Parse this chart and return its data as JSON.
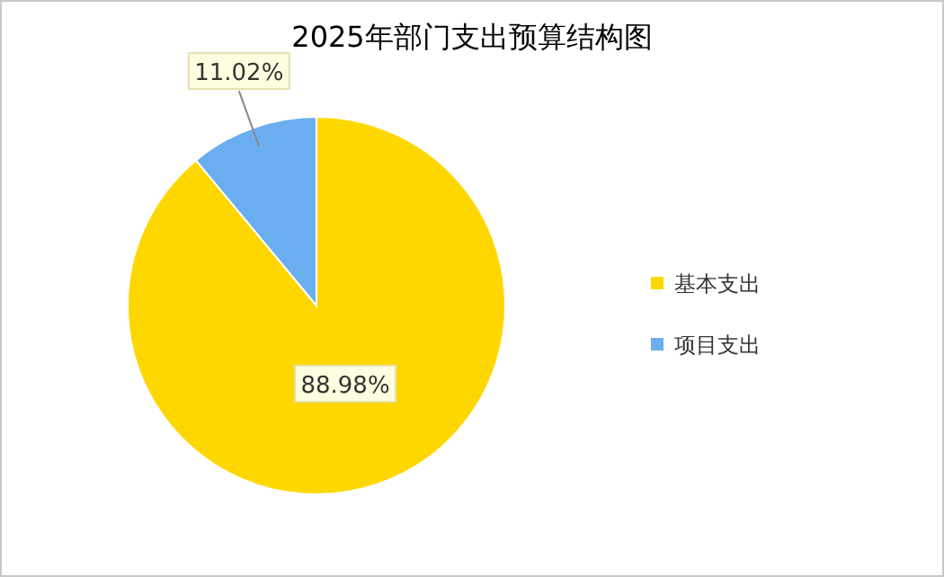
{
  "chart_data": {
    "type": "pie",
    "title": "2025年部门支出预算结构图",
    "categories": [
      "基本支出",
      "项目支出"
    ],
    "values": [
      88.98,
      11.02
    ],
    "colors": [
      "#ffd700",
      "#6aaef0"
    ],
    "value_labels": [
      "88.98%",
      "11.02%"
    ],
    "legend": "right"
  }
}
